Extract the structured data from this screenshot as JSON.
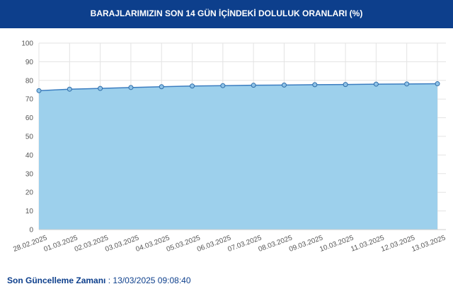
{
  "chart_data": {
    "type": "area",
    "title": "BARAJLARIMIZIN SON 14 GÜN İÇİNDEKİ DOLULUK ORANLARI (%)",
    "categories": [
      "28.02.2025",
      "01.03.2025",
      "02.03.2025",
      "03.03.2025",
      "04.03.2025",
      "05.03.2025",
      "06.03.2025",
      "07.03.2025",
      "08.03.2025",
      "09.03.2025",
      "10.03.2025",
      "11.03.2025",
      "12.03.2025",
      "13.03.2025"
    ],
    "values": [
      74.5,
      75.3,
      75.7,
      76.2,
      76.6,
      77.0,
      77.2,
      77.4,
      77.5,
      77.7,
      77.8,
      78.0,
      78.1,
      78.2
    ],
    "color": "#9dd0ec",
    "line_color": "#3b7dc0",
    "ylim": [
      0,
      100
    ],
    "yticks": [
      0,
      10,
      20,
      30,
      40,
      50,
      60,
      70,
      80,
      90,
      100
    ],
    "grid": true
  },
  "footer": {
    "label": "Son Güncelleme Zamanı",
    "separator": ":",
    "value": "13/03/2025 09:08:40"
  }
}
